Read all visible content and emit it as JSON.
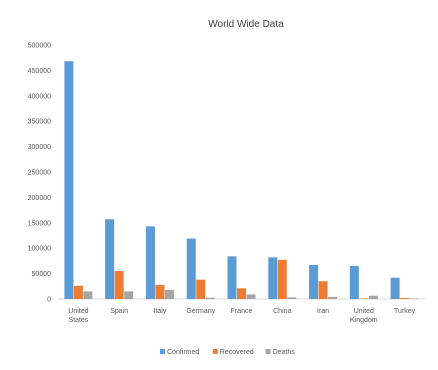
{
  "chart_data": {
    "type": "bar",
    "title": "World Wide Data",
    "xlabel": "",
    "ylabel": "",
    "ylim": [
      0,
      500000
    ],
    "yticks": [
      "0",
      "50000",
      "100000",
      "150000",
      "200000",
      "250000",
      "300000",
      "350000",
      "400000",
      "450000",
      "500000"
    ],
    "ytick_values": [
      0,
      50000,
      100000,
      150000,
      200000,
      250000,
      300000,
      350000,
      400000,
      450000,
      500000
    ],
    "categories": [
      [
        "United",
        "States"
      ],
      [
        "Spain"
      ],
      [
        "Italy"
      ],
      [
        "Germany"
      ],
      [
        "France"
      ],
      [
        "China"
      ],
      [
        "Iran"
      ],
      [
        "United",
        "Kingdom"
      ],
      [
        "Turkey"
      ]
    ],
    "series": [
      {
        "name": "Confirmed",
        "color": "#5b9bd5",
        "values": [
          468000,
          157000,
          143000,
          119000,
          84000,
          82000,
          67000,
          65000,
          42000
        ]
      },
      {
        "name": "Recovered",
        "color": "#ed7d31",
        "values": [
          26000,
          55000,
          28000,
          38000,
          21000,
          77000,
          35000,
          400,
          2000
        ]
      },
      {
        "name": "Deaths",
        "color": "#a5a5a5",
        "values": [
          15000,
          15000,
          18000,
          2500,
          9000,
          3300,
          4200,
          6400,
          900
        ]
      }
    ],
    "grid": false,
    "legend_position": "bottom"
  }
}
